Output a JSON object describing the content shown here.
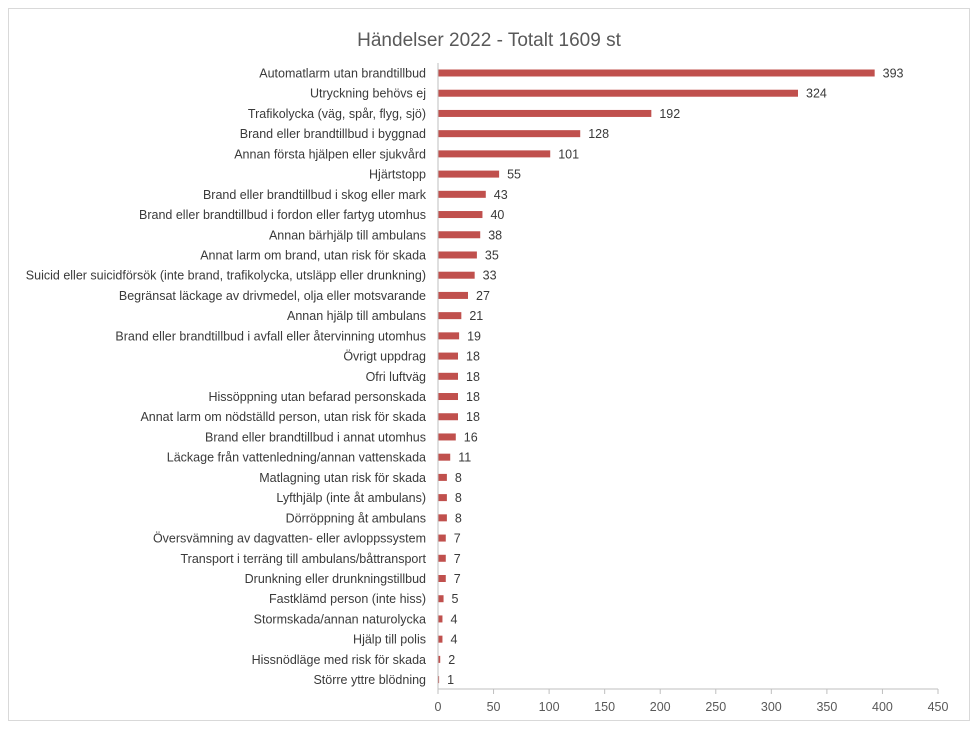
{
  "colors": {
    "bar": "#c0504d",
    "axis": "#bfbfbf",
    "text": "#3a3a3a",
    "title": "#595959"
  },
  "chart_data": {
    "type": "bar",
    "orientation": "horizontal",
    "title": "Händelser 2022 - Totalt 1609 st",
    "xlabel": "",
    "ylabel": "",
    "xlim": [
      0,
      450
    ],
    "ticks": [
      0,
      50,
      100,
      150,
      200,
      250,
      300,
      350,
      400,
      450
    ],
    "grid": false,
    "legend": "none",
    "categories": [
      "Automatlarm utan brandtillbud",
      "Utryckning behövs ej",
      "Trafikolycka (väg, spår, flyg, sjö)",
      "Brand eller brandtillbud i byggnad",
      "Annan första hjälpen eller sjukvård",
      "Hjärtstopp",
      "Brand eller brandtillbud i skog eller mark",
      "Brand eller brandtillbud i fordon eller fartyg utomhus",
      "Annan bärhjälp till ambulans",
      "Annat larm om brand, utan risk för skada",
      "Suicid eller suicidförsök (inte brand, trafikolycka, utsläpp eller drunkning)",
      "Begränsat läckage av drivmedel, olja eller motsvarande",
      "Annan hjälp till ambulans",
      "Brand eller brandtillbud i avfall eller återvinning utomhus",
      "Övrigt uppdrag",
      "Ofri luftväg",
      "Hissöppning utan befarad personskada",
      "Annat larm om nödställd person, utan risk för skada",
      "Brand eller brandtillbud i annat utomhus",
      "Läckage från vattenledning/annan vattenskada",
      "Matlagning utan risk för skada",
      "Lyfthjälp (inte åt ambulans)",
      "Dörröppning åt ambulans",
      "Översvämning av dagvatten- eller avloppssystem",
      "Transport i terräng till ambulans/båttransport",
      "Drunkning eller drunkningstillbud",
      "Fastklämd person (inte hiss)",
      "Stormskada/annan naturolycka",
      "Hjälp till polis",
      "Hissnödläge med risk för skada",
      "Större yttre blödning"
    ],
    "values": [
      393,
      324,
      192,
      128,
      101,
      55,
      43,
      40,
      38,
      35,
      33,
      27,
      21,
      19,
      18,
      18,
      18,
      18,
      16,
      11,
      8,
      8,
      8,
      7,
      7,
      7,
      5,
      4,
      4,
      2,
      1
    ]
  }
}
